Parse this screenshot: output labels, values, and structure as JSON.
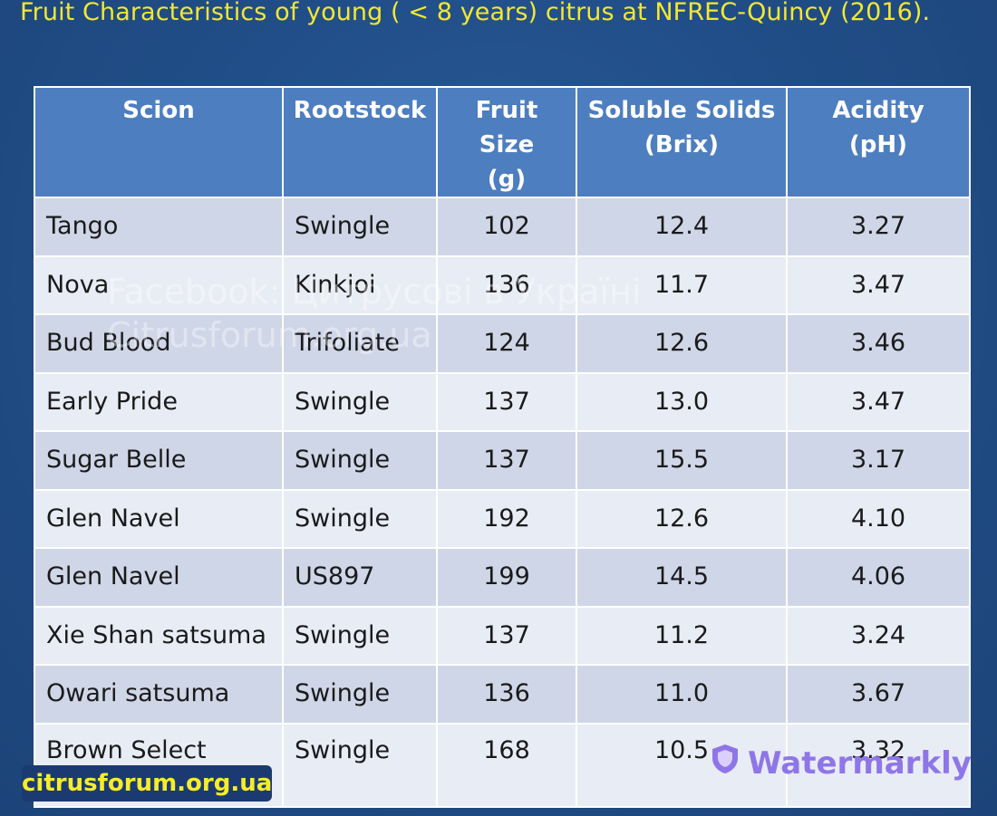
{
  "title": "Fruit Characteristics of young ( < 8 years) citrus at NFREC-Quincy (2016).",
  "table": {
    "headers": [
      [
        "Scion"
      ],
      [
        "Rootstock"
      ],
      [
        "Fruit Size",
        "(g)"
      ],
      [
        "Soluble Solids",
        "(Brix)"
      ],
      [
        "Acidity",
        "(pH)"
      ]
    ],
    "rows": [
      [
        "Tango",
        "Swingle",
        "102",
        "12.4",
        "3.27"
      ],
      [
        "Nova",
        "Kinkjoi",
        "136",
        "11.7",
        "3.47"
      ],
      [
        "Bud Blood",
        "Trifoliate",
        "124",
        "12.6",
        "3.46"
      ],
      [
        "Early Pride",
        "Swingle",
        "137",
        "13.0",
        "3.47"
      ],
      [
        "Sugar Belle",
        "Swingle",
        "137",
        "15.5",
        "3.17"
      ],
      [
        "Glen Navel",
        "Swingle",
        "192",
        "12.6",
        "4.10"
      ],
      [
        "Glen Navel",
        "US897",
        "199",
        "14.5",
        "4.06"
      ],
      [
        "Xie Shan satsuma",
        "Swingle",
        "137",
        "11.2",
        "3.24"
      ],
      [
        "Owari satsuma",
        "Swingle",
        "136",
        "11.0",
        "3.67"
      ],
      [
        "Brown Select satsuma",
        "Swingle",
        "168",
        "10.5",
        "3.32"
      ]
    ]
  },
  "watermarks": {
    "line1": "Facebook: Цитрусові в Україні",
    "line2": "Citrusforum.org.ua",
    "badge_icon": "shield-icon",
    "badge_text": "Watermarkly",
    "corner": "citrusforum.org.ua"
  },
  "colors": {
    "background": "#214e88",
    "title": "#f3e733",
    "header": "#4d7ebf",
    "row_odd": "#cfd6e7",
    "row_even": "#e8ecf4"
  }
}
